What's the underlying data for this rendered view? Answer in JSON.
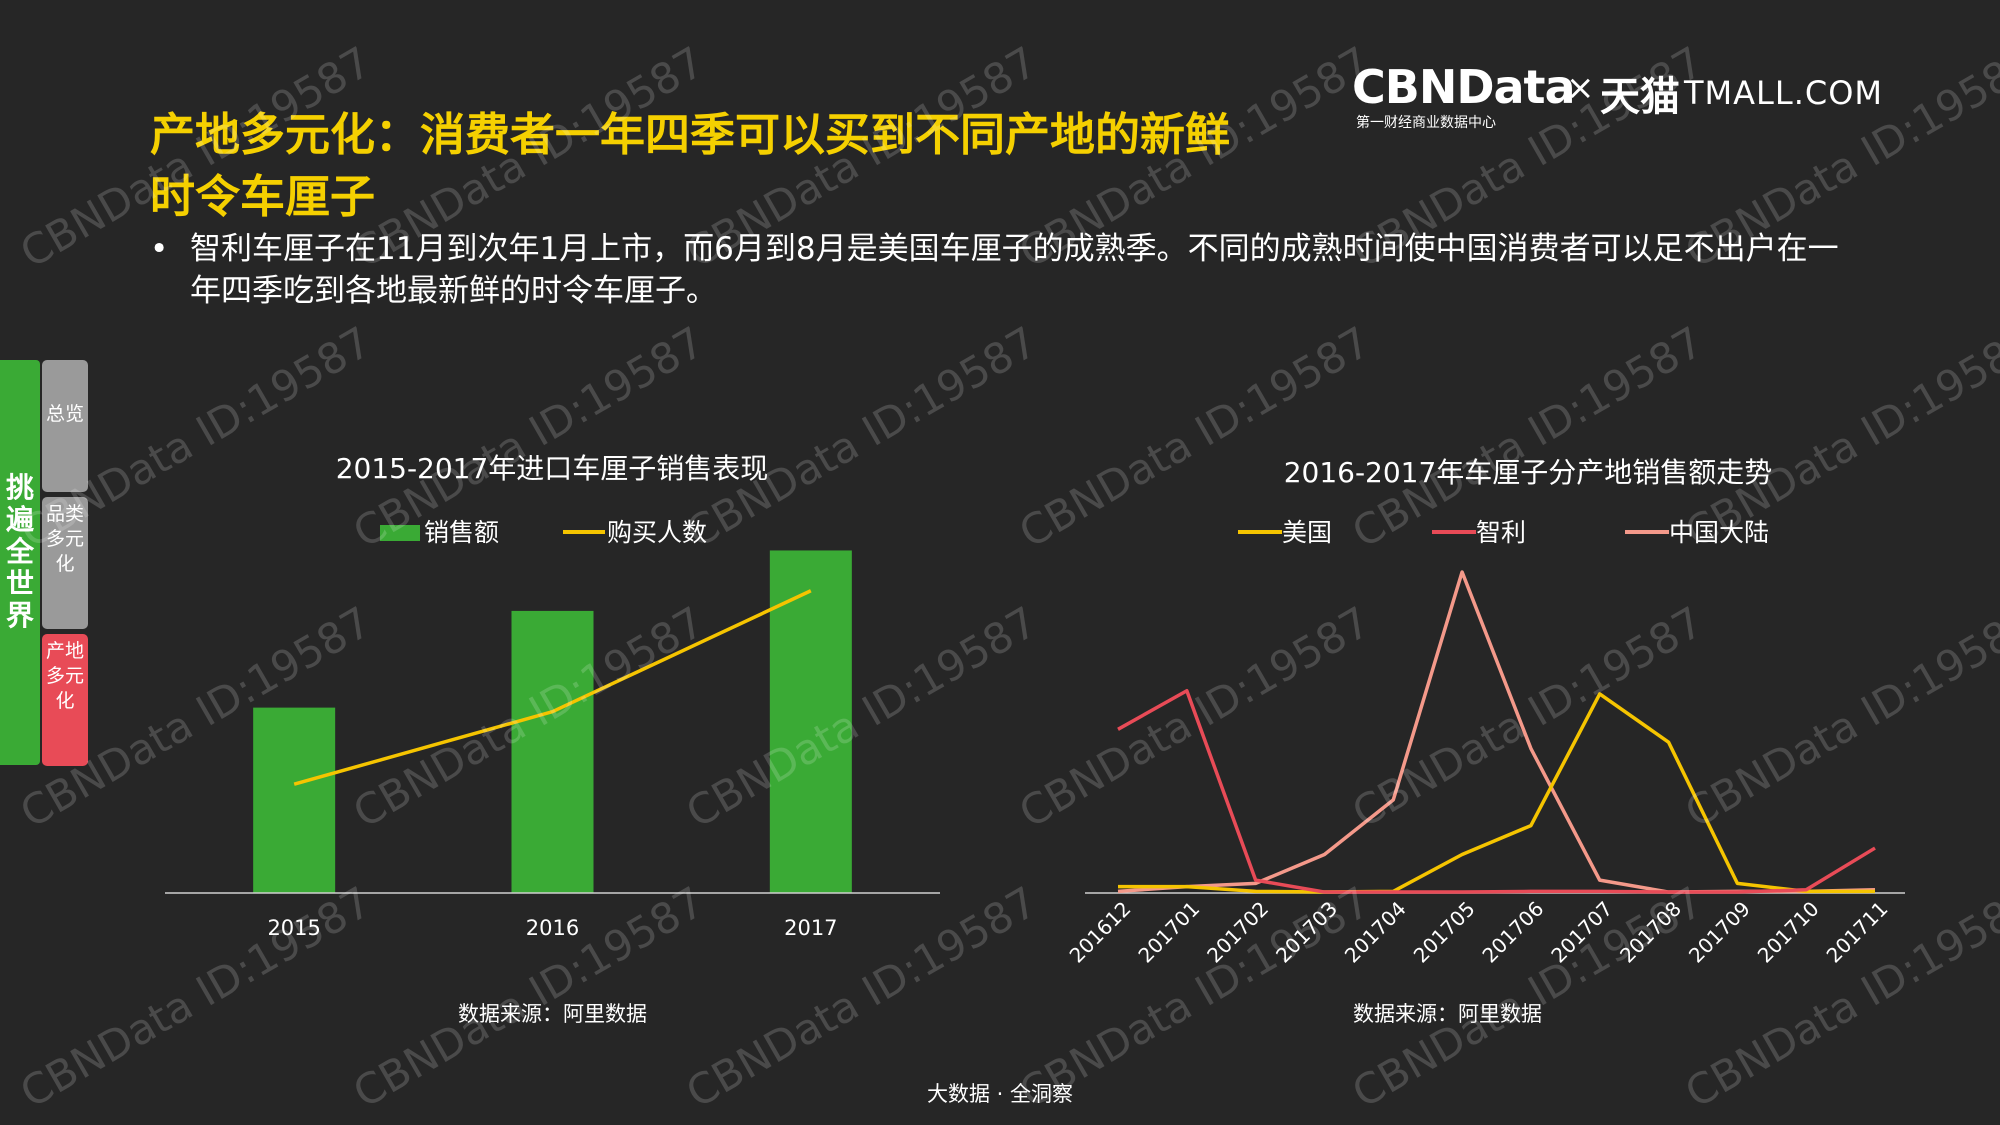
{
  "title": "产地多元化：消费者一年四季可以买到不同产地的新鲜时令车厘子",
  "bullet": "智利车厘子在11月到次年1月上市，而6月到8月是美国车厘子的成熟季。不同的成熟时间使中国消费者可以足不出户在一年四季吃到各地最新鲜的时令车厘子。",
  "bullet_marker": "•",
  "logo": {
    "cbn": "CBNData",
    "cbn_sub": "第一财经商业数据中心",
    "times": "×",
    "tmall_cn": "天猫",
    "tmall_en": "TMALL.COM"
  },
  "sidebar": {
    "main": "挑遍全世界",
    "tabs": [
      {
        "label": "总览"
      },
      {
        "label": "品类多元化"
      },
      {
        "label": "产地多元化"
      }
    ]
  },
  "source_left": "数据来源：阿里数据",
  "source_right": "数据来源：阿里数据",
  "footer": "大数据 · 全洞察",
  "watermark": "CBNData ID:19587",
  "colors": {
    "title": "#f5d000",
    "green": "#3aaa35",
    "yellow": "#f5c400",
    "red": "#e84b57",
    "salmon": "#f4998a"
  },
  "chart_data": [
    {
      "type": "bar",
      "title": "2015-2017年进口车厘子销售表现",
      "categories": [
        "2015",
        "2016",
        "2017"
      ],
      "series": [
        {
          "name": "销售额",
          "type": "bar",
          "values": [
            46,
            70,
            85
          ]
        },
        {
          "name": "购买人数",
          "type": "line",
          "values": [
            27,
            45,
            75
          ]
        }
      ],
      "ylim": [
        0,
        100
      ],
      "legend": "top",
      "grid": false
    },
    {
      "type": "line",
      "title": "2016-2017年车厘子分产地销售额走势",
      "categories": [
        "201612",
        "201701",
        "201702",
        "201703",
        "201704",
        "201705",
        "201706",
        "201707",
        "201708",
        "201709",
        "201710",
        "201711"
      ],
      "series": [
        {
          "name": "美国",
          "values": [
            2,
            2,
            0.5,
            0.3,
            0.5,
            12,
            21,
            62,
            47,
            3,
            0.5,
            0.5
          ]
        },
        {
          "name": "智利",
          "values": [
            51,
            63,
            4,
            0.3,
            0.3,
            0.3,
            0.5,
            0.5,
            0.3,
            0.3,
            1,
            14
          ]
        },
        {
          "name": "中国大陆",
          "values": [
            0.5,
            2,
            3,
            12,
            29,
            100,
            45,
            4,
            0.3,
            0.5,
            0.5,
            1
          ]
        }
      ],
      "ylim": [
        0,
        100
      ],
      "legend": "top",
      "grid": false
    }
  ]
}
